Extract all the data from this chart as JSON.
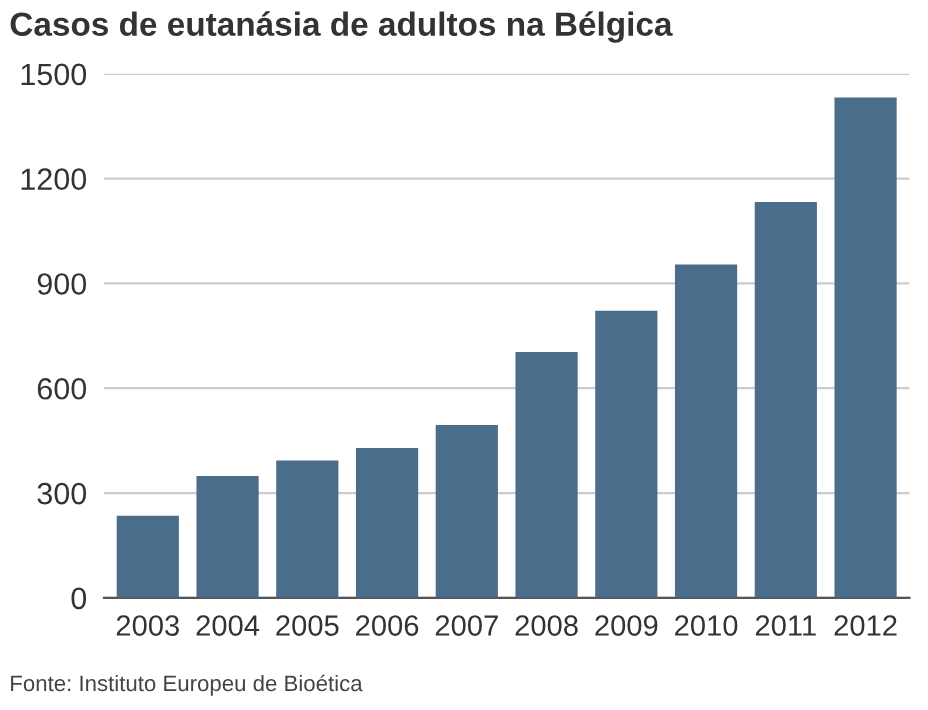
{
  "chart_data": {
    "type": "bar",
    "title": "Casos de eutanásia de adultos na Bélgica",
    "categories": [
      "2003",
      "2004",
      "2005",
      "2006",
      "2007",
      "2008",
      "2009",
      "2010",
      "2011",
      "2012"
    ],
    "values": [
      235,
      349,
      393,
      429,
      495,
      704,
      822,
      954,
      1133,
      1432
    ],
    "color": "#4a6d8c",
    "ylim": [
      0,
      1500
    ],
    "yticks": [
      0,
      300,
      600,
      900,
      1200,
      1500
    ],
    "grid": "y",
    "annotations": [
      "Fonte: Instituto Europeu de Bioética"
    ]
  }
}
